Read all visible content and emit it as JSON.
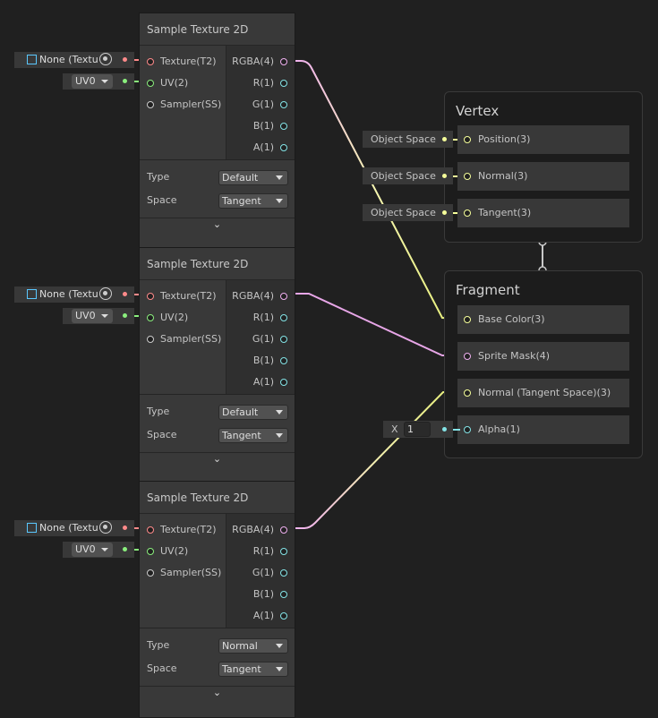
{
  "nodes": [
    {
      "title": "Sample Texture 2D",
      "inputs": [
        "Texture(T2)",
        "UV(2)",
        "Sampler(SS)"
      ],
      "outputs": [
        "RGBA(4)",
        "R(1)",
        "G(1)",
        "B(1)",
        "A(1)"
      ],
      "type_label": "Type",
      "type_value": "Default",
      "space_label": "Space",
      "space_value": "Tangent",
      "texture_value": "None (Textu",
      "uv_value": "UV0"
    },
    {
      "title": "Sample Texture 2D",
      "inputs": [
        "Texture(T2)",
        "UV(2)",
        "Sampler(SS)"
      ],
      "outputs": [
        "RGBA(4)",
        "R(1)",
        "G(1)",
        "B(1)",
        "A(1)"
      ],
      "type_label": "Type",
      "type_value": "Default",
      "space_label": "Space",
      "space_value": "Tangent",
      "texture_value": "None (Textu",
      "uv_value": "UV0"
    },
    {
      "title": "Sample Texture 2D",
      "inputs": [
        "Texture(T2)",
        "UV(2)",
        "Sampler(SS)"
      ],
      "outputs": [
        "RGBA(4)",
        "R(1)",
        "G(1)",
        "B(1)",
        "A(1)"
      ],
      "type_label": "Type",
      "type_value": "Normal",
      "space_label": "Space",
      "space_value": "Tangent",
      "texture_value": "None (Textu",
      "uv_value": "UV0"
    }
  ],
  "vertex": {
    "title": "Vertex",
    "slots": [
      "Position(3)",
      "Normal(3)",
      "Tangent(3)"
    ],
    "input_value": "Object Space"
  },
  "fragment": {
    "title": "Fragment",
    "slots": [
      "Base Color(3)",
      "Sprite Mask(4)",
      "Normal (Tangent Space)(3)",
      "Alpha(1)"
    ],
    "alpha_axis": "X",
    "alpha_value": "1"
  },
  "colors": {
    "texture": "#ff8a8a",
    "uv": "#8aef7d",
    "vector4": "#f0b0f0",
    "vector3": "#f6ff9a",
    "float": "#84e4e7",
    "background": "#202020"
  }
}
